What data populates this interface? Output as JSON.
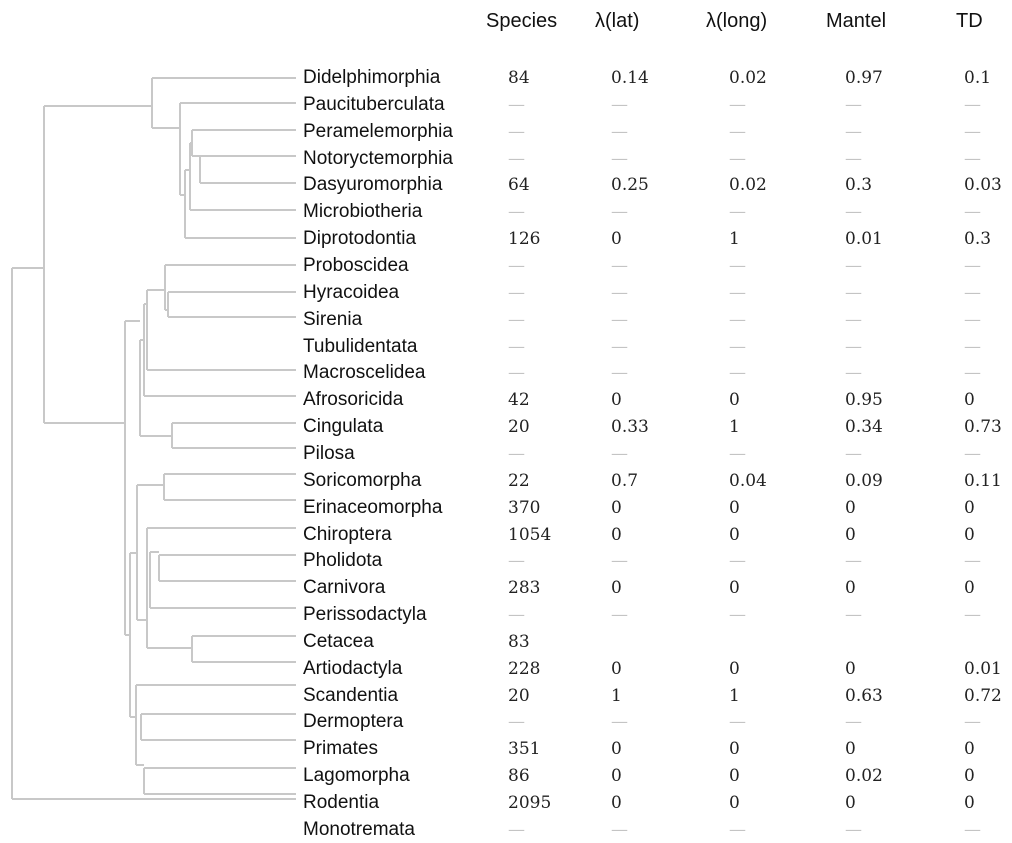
{
  "headers": [
    "Species",
    "λ(lat)",
    "λ(long)",
    "Mantel",
    "TD"
  ],
  "rows": [
    {
      "order": "Didelphimorphia",
      "values": [
        "84",
        "0.14",
        "0.02",
        "0.97",
        "0.1"
      ]
    },
    {
      "order": "Paucituberculata",
      "values": [
        "—",
        "—",
        "—",
        "—",
        "—"
      ]
    },
    {
      "order": "Peramelemorphia",
      "values": [
        "—",
        "—",
        "—",
        "—",
        "—"
      ]
    },
    {
      "order": "Notoryctemorphia",
      "values": [
        "—",
        "—",
        "—",
        "—",
        "—"
      ]
    },
    {
      "order": "Dasyuromorphia",
      "values": [
        "64",
        "0.25",
        "0.02",
        "0.3",
        "0.03"
      ]
    },
    {
      "order": "Microbiotheria",
      "values": [
        "—",
        "—",
        "—",
        "—",
        "—"
      ]
    },
    {
      "order": "Diprotodontia",
      "values": [
        "126",
        "0",
        "1",
        "0.01",
        "0.3"
      ]
    },
    {
      "order": "Proboscidea",
      "values": [
        "—",
        "—",
        "—",
        "—",
        "—"
      ]
    },
    {
      "order": "Hyracoidea",
      "values": [
        "—",
        "—",
        "—",
        "—",
        "—"
      ]
    },
    {
      "order": "Sirenia",
      "values": [
        "—",
        "—",
        "—",
        "—",
        "—"
      ]
    },
    {
      "order": "Tubulidentata",
      "values": [
        "—",
        "—",
        "—",
        "—",
        "—"
      ]
    },
    {
      "order": "Macroscelidea",
      "values": [
        "—",
        "—",
        "—",
        "—",
        "—"
      ]
    },
    {
      "order": "Afrosoricida",
      "values": [
        "42",
        "0",
        "0",
        "0.95",
        "0"
      ]
    },
    {
      "order": "Cingulata",
      "values": [
        "20",
        "0.33",
        "1",
        "0.34",
        "0.73"
      ]
    },
    {
      "order": "Pilosa",
      "values": [
        "—",
        "—",
        "—",
        "—",
        "—"
      ]
    },
    {
      "order": "Soricomorpha",
      "values": [
        "22",
        "0.7",
        "0.04",
        "0.09",
        "0.11"
      ]
    },
    {
      "order": "Erinaceomorpha",
      "values": [
        "370",
        "0",
        "0",
        "0",
        "0"
      ]
    },
    {
      "order": "Chiroptera",
      "values": [
        "1054",
        "0",
        "0",
        "0",
        "0"
      ]
    },
    {
      "order": "Pholidota",
      "values": [
        "—",
        "—",
        "—",
        "—",
        "—"
      ]
    },
    {
      "order": "Carnivora",
      "values": [
        "283",
        "0",
        "0",
        "0",
        "0"
      ]
    },
    {
      "order": "Perissodactyla",
      "values": [
        "—",
        "—",
        "—",
        "—",
        "—"
      ]
    },
    {
      "order": "Cetacea",
      "values": [
        "83",
        "",
        "",
        "",
        ""
      ]
    },
    {
      "order": "Artiodactyla",
      "values": [
        "228",
        "0",
        "0",
        "0",
        "0.01"
      ]
    },
    {
      "order": "Scandentia",
      "values": [
        "20",
        "1",
        "1",
        "0.63",
        "0.72"
      ]
    },
    {
      "order": "Dermoptera",
      "values": [
        "—",
        "—",
        "—",
        "—",
        "—"
      ]
    },
    {
      "order": "Primates",
      "values": [
        "351",
        "0",
        "0",
        "0",
        "0"
      ]
    },
    {
      "order": "Lagomorpha",
      "values": [
        "86",
        "0",
        "0",
        "0.02",
        "0"
      ]
    },
    {
      "order": "Rodentia",
      "values": [
        "2095",
        "0",
        "0",
        "0",
        "0"
      ]
    },
    {
      "order": "Monotremata",
      "values": [
        "—",
        "—",
        "—",
        "—",
        "—"
      ]
    }
  ],
  "colors": {
    "tree_line": "#c8c8c8",
    "dash": "#c4c4c4",
    "text": "#111111"
  }
}
